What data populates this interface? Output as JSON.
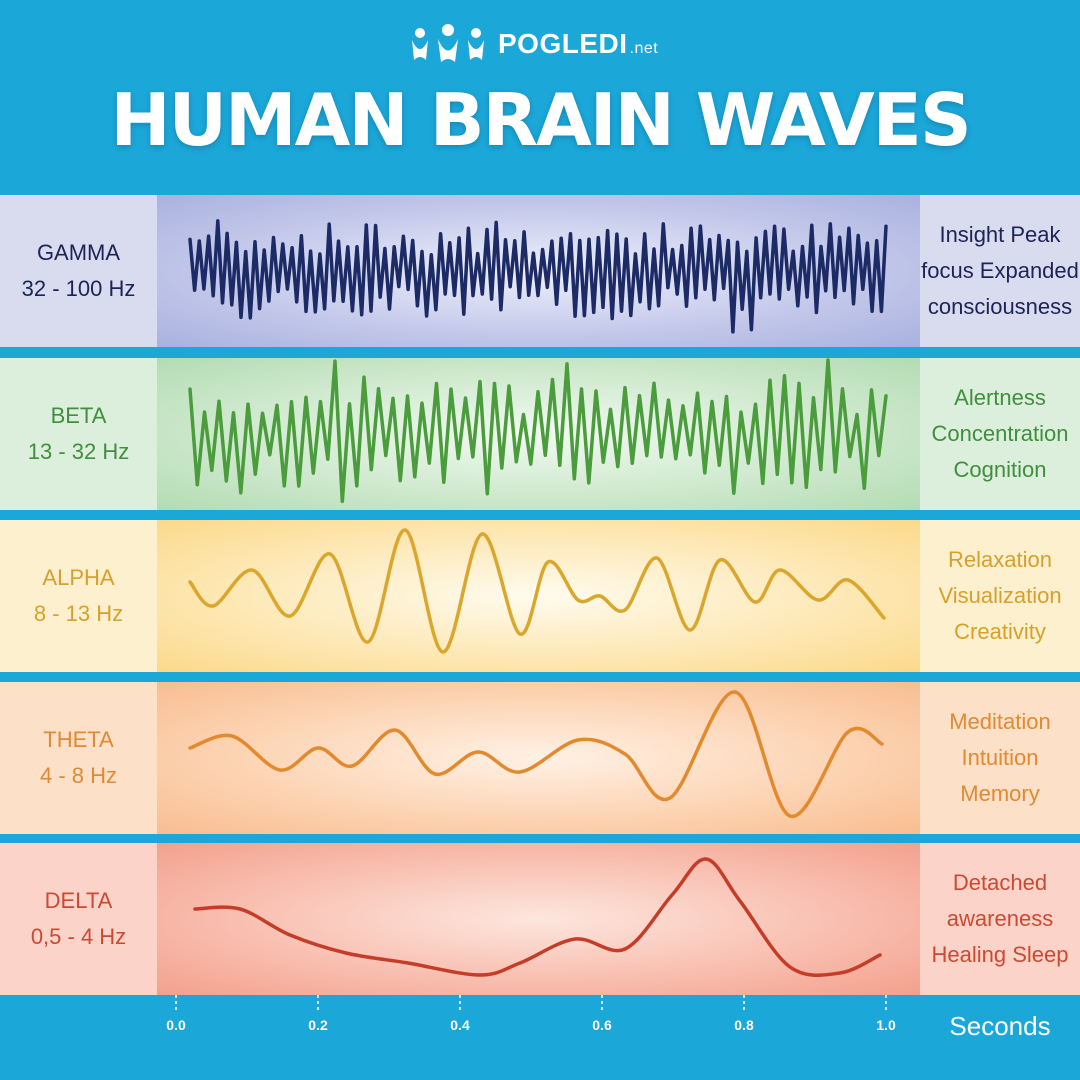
{
  "logo": {
    "name": "POGLEDI",
    "tld": ".net",
    "icon": "people-group-icon"
  },
  "title": "HUMAN BRAIN WAVES",
  "bands": [
    {
      "key": "gamma",
      "name": "GAMMA",
      "range": "32 - 100 Hz",
      "effects": [
        "Insight Peak",
        "focus Expanded",
        "consciousness"
      ],
      "color": "#1c2a66"
    },
    {
      "key": "beta",
      "name": "BETA",
      "range": "13 - 32 Hz",
      "effects": [
        "Alertness",
        "Concentration",
        "Cognition"
      ],
      "color": "#4a9c3c"
    },
    {
      "key": "alpha",
      "name": "ALPHA",
      "range": "8 - 13 Hz",
      "effects": [
        "Relaxation",
        "Visualization",
        "Creativity"
      ],
      "color": "#dba62c"
    },
    {
      "key": "theta",
      "name": "THETA",
      "range": "4 - 8 Hz",
      "effects": [
        "Meditation",
        "Intuition",
        "Memory"
      ],
      "color": "#e3892e"
    },
    {
      "key": "delta",
      "name": "DELTA",
      "range": "0,5 - 4 Hz",
      "effects": [
        "Detached",
        "awareness",
        "Healing Sleep"
      ],
      "color": "#c53c28"
    }
  ],
  "axis": {
    "ticks": [
      "0.0",
      "0.2",
      "0.4",
      "0.6",
      "0.8",
      "1.0"
    ],
    "unit": "Seconds"
  }
}
